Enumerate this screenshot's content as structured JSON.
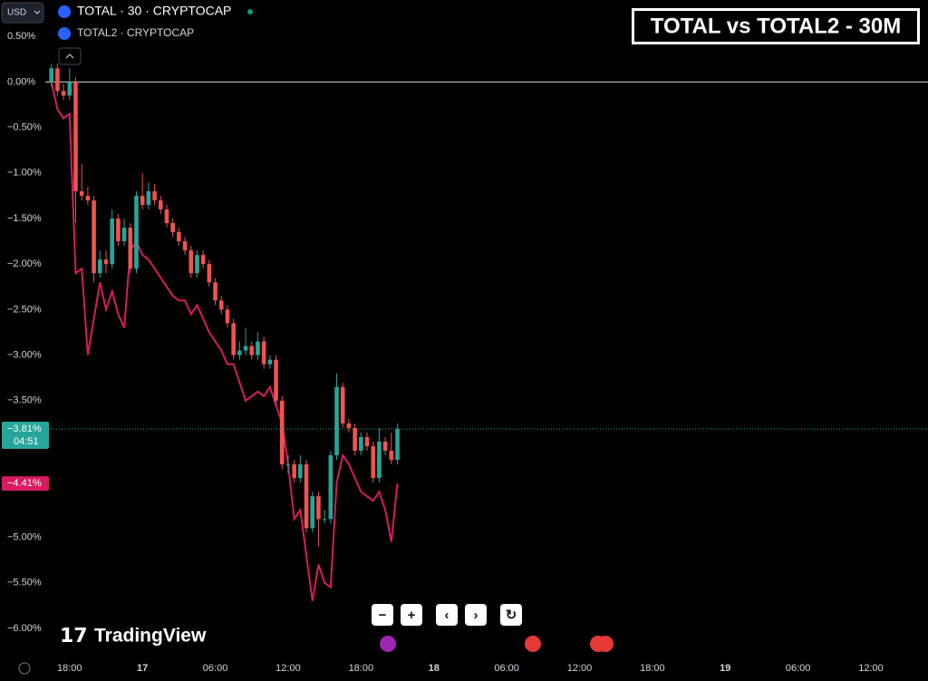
{
  "chart_data": {
    "type": "candlestick",
    "currency": "USD",
    "title": "TOTAL vs TOTAL2 - 30M",
    "watermark": "TradingView",
    "x": [
      0,
      1,
      2,
      3,
      4,
      5,
      6,
      7,
      8,
      9,
      10,
      11,
      12,
      13,
      14,
      15,
      16,
      17,
      18,
      19,
      20,
      21,
      22,
      23,
      24,
      25,
      26,
      27,
      28,
      29,
      30,
      31,
      32,
      33,
      34,
      35,
      36,
      37,
      38,
      39,
      40,
      41,
      42,
      43,
      44,
      45,
      46,
      47,
      48,
      49,
      50,
      51,
      52,
      53,
      54,
      55,
      56,
      57
    ],
    "xlim": [
      -1,
      144.4
    ],
    "xticks": [
      {
        "value": 3,
        "label": "18:00"
      },
      {
        "value": 15,
        "label": "17"
      },
      {
        "value": 27,
        "label": "06:00"
      },
      {
        "value": 39,
        "label": "12:00"
      },
      {
        "value": 51,
        "label": "18:00"
      },
      {
        "value": 63,
        "label": "18"
      },
      {
        "value": 75,
        "label": "06:00"
      },
      {
        "value": 87,
        "label": "12:00"
      },
      {
        "value": 99,
        "label": "18:00"
      },
      {
        "value": 111,
        "label": "19"
      },
      {
        "value": 123,
        "label": "06:00"
      },
      {
        "value": 135,
        "label": "12:00"
      }
    ],
    "ylim": [
      -6.3,
      0.9
    ],
    "yticks": [
      {
        "value": 0.5,
        "label": "0.50%"
      },
      {
        "value": 0,
        "label": "0.00%"
      },
      {
        "value": -0.5,
        "label": "−0.50%"
      },
      {
        "value": -1,
        "label": "−1.00%"
      },
      {
        "value": -1.5,
        "label": "−1.50%"
      },
      {
        "value": -2,
        "label": "−2.00%"
      },
      {
        "value": -2.5,
        "label": "−2.50%"
      },
      {
        "value": -3,
        "label": "−3.00%"
      },
      {
        "value": -3.5,
        "label": "−3.50%"
      },
      {
        "value": -5,
        "label": "−5.00%"
      },
      {
        "value": -5.5,
        "label": "−5.50%"
      },
      {
        "value": -6,
        "label": "−6.00%"
      }
    ],
    "series": [
      {
        "name": "TOTAL · 30 · CRYPTOCAP",
        "type": "candlestick",
        "up_color": "#26a69a",
        "down_color": "#ef5350",
        "open": [
          0,
          0.15,
          -0.1,
          -0.15,
          0.0,
          -1.2,
          -1.25,
          -1.3,
          -2.1,
          -1.95,
          -2.0,
          -1.5,
          -1.75,
          -1.6,
          -2.05,
          -1.25,
          -1.35,
          -1.2,
          -1.3,
          -1.4,
          -1.55,
          -1.65,
          -1.75,
          -1.85,
          -2.1,
          -1.9,
          -2.0,
          -2.2,
          -2.4,
          -2.5,
          -2.65,
          -3.0,
          -2.95,
          -2.9,
          -3.0,
          -2.85,
          -3.1,
          -3.05,
          -3.5,
          -4.2,
          -4.2,
          -4.35,
          -4.2,
          -4.9,
          -4.55,
          -4.8,
          -4.8,
          -4.1,
          -3.35,
          -3.75,
          -3.8,
          -4.05,
          -3.9,
          -4.0,
          -4.35,
          -3.95,
          -4.05,
          -4.15
        ],
        "high": [
          0.2,
          0.2,
          -0.02,
          0.15,
          0.05,
          -0.9,
          -1.15,
          -1.25,
          -1.85,
          -1.85,
          -1.4,
          -1.45,
          -1.5,
          -1.55,
          -1.2,
          -1.0,
          -1.1,
          -1.12,
          -1.25,
          -1.35,
          -1.5,
          -1.6,
          -1.7,
          -1.8,
          -1.85,
          -1.85,
          -1.95,
          -2.15,
          -2.35,
          -2.45,
          -2.6,
          -2.85,
          -2.7,
          -2.85,
          -2.75,
          -2.8,
          -3.0,
          -3.0,
          -3.45,
          -4.1,
          -4.15,
          -4.1,
          -4.15,
          -4.5,
          -4.5,
          -4.7,
          -4.05,
          -3.2,
          -3.3,
          -3.7,
          -3.75,
          -3.85,
          -3.85,
          -3.95,
          -3.8,
          -3.9,
          -3.85,
          -3.75
        ],
        "low": [
          -0.05,
          -0.15,
          -0.2,
          -0.2,
          -1.55,
          -1.3,
          -1.35,
          -2.2,
          -2.15,
          -2.1,
          -2.05,
          -1.8,
          -1.8,
          -2.1,
          -2.1,
          -1.4,
          -1.4,
          -1.35,
          -1.45,
          -1.6,
          -1.7,
          -1.8,
          -1.9,
          -2.15,
          -2.15,
          -2.05,
          -2.25,
          -2.45,
          -2.55,
          -2.7,
          -3.05,
          -3.05,
          -3.0,
          -3.05,
          -3.05,
          -3.15,
          -3.15,
          -3.55,
          -4.25,
          -4.3,
          -4.4,
          -4.4,
          -4.95,
          -4.95,
          -5.1,
          -4.85,
          -4.85,
          -4.15,
          -3.8,
          -3.85,
          -4.1,
          -4.1,
          -4.05,
          -4.4,
          -4.4,
          -4.1,
          -4.2,
          -4.2
        ],
        "close": [
          0.15,
          -0.1,
          -0.15,
          0.0,
          -1.2,
          -1.25,
          -1.3,
          -2.1,
          -1.95,
          -2.0,
          -1.5,
          -1.75,
          -1.6,
          -2.05,
          -1.25,
          -1.35,
          -1.2,
          -1.3,
          -1.4,
          -1.55,
          -1.65,
          -1.75,
          -1.85,
          -2.1,
          -1.9,
          -2.0,
          -2.2,
          -2.4,
          -2.5,
          -2.65,
          -3.0,
          -2.95,
          -2.9,
          -3.0,
          -2.85,
          -3.1,
          -3.05,
          -3.5,
          -4.2,
          -4.2,
          -4.35,
          -4.2,
          -4.9,
          -4.55,
          -4.8,
          -4.8,
          -4.1,
          -3.35,
          -3.75,
          -3.8,
          -4.05,
          -3.9,
          -4.0,
          -4.35,
          -3.95,
          -4.05,
          -4.15,
          -3.81
        ],
        "price_label": "−3.81%",
        "countdown": "04:51"
      },
      {
        "name": "TOTAL2 · CRYPTOCAP",
        "type": "line",
        "color": "#d81b60",
        "values": [
          0,
          -0.3,
          -0.4,
          -0.35,
          -2.1,
          -2.05,
          -3.0,
          -2.6,
          -2.2,
          -2.5,
          -2.3,
          -2.55,
          -2.7,
          -1.85,
          -1.75,
          -1.9,
          -1.95,
          -2.05,
          -2.15,
          -2.25,
          -2.35,
          -2.4,
          -2.4,
          -2.55,
          -2.45,
          -2.6,
          -2.75,
          -2.85,
          -2.95,
          -3.1,
          -3.1,
          -3.3,
          -3.5,
          -3.45,
          -3.4,
          -3.45,
          -3.35,
          -3.55,
          -3.75,
          -4.2,
          -4.8,
          -4.7,
          -5.2,
          -5.7,
          -5.3,
          -5.5,
          -5.55,
          -4.4,
          -4.1,
          -4.2,
          -4.35,
          -4.5,
          -4.55,
          -4.6,
          -4.5,
          -4.7,
          -5.05,
          -4.41
        ],
        "price_label": "−4.41%"
      }
    ]
  }
}
